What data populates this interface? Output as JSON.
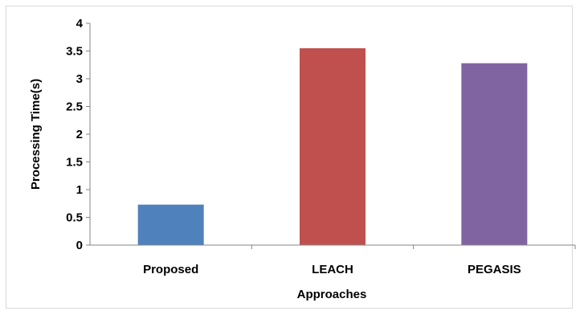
{
  "chart_data": {
    "type": "bar",
    "title": "",
    "xlabel": "Approaches",
    "ylabel": "Processing Time(s)",
    "ylim": [
      0,
      4
    ],
    "yticks": [
      "0",
      "0.5",
      "1",
      "1.5",
      "2",
      "2.5",
      "3",
      "3.5",
      "4"
    ],
    "categories": [
      "Proposed",
      "LEACH",
      "PEGASIS"
    ],
    "values": [
      0.73,
      3.55,
      3.28
    ],
    "colors": [
      "#4f81bd",
      "#c0504d",
      "#8064a2"
    ],
    "grid": false,
    "legend": "none"
  }
}
